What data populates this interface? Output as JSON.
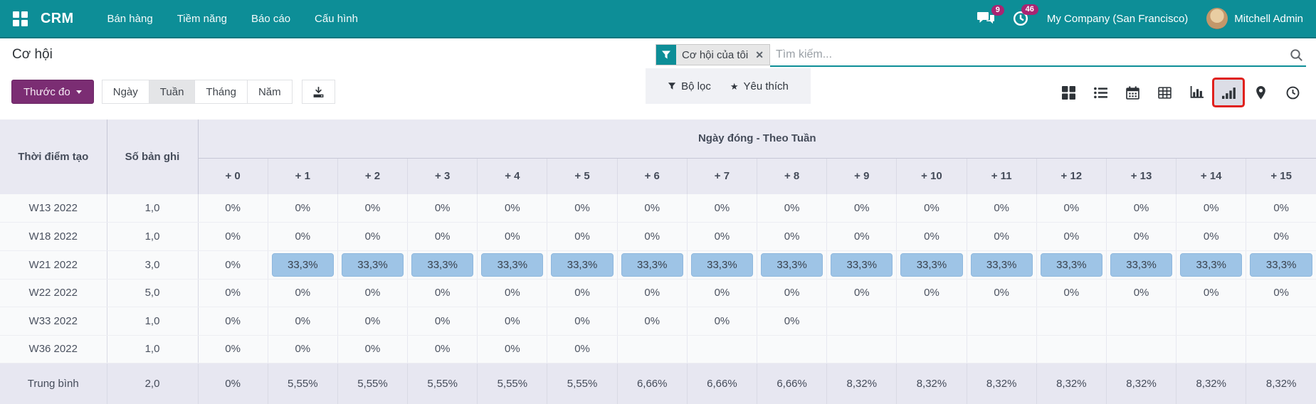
{
  "navbar": {
    "brand": "CRM",
    "menus": [
      "Bán hàng",
      "Tiềm năng",
      "Báo cáo",
      "Cấu hình"
    ],
    "messages_badge": "9",
    "activities_badge": "46",
    "company": "My Company (San Francisco)",
    "user": "Mitchell Admin"
  },
  "header": {
    "title": "Cơ hội",
    "search": {
      "filter_tag": "Cơ hội của tôi",
      "placeholder": "Tìm kiếm..."
    },
    "measure_button": "Thước đo",
    "ranges": [
      "Ngày",
      "Tuần",
      "Tháng",
      "Năm"
    ],
    "active_range": "Tuần",
    "filters_button": "Bộ lọc",
    "favorites_button": "Yêu thích",
    "view_switcher": [
      "kanban",
      "list",
      "calendar",
      "pivot",
      "graph",
      "cohort",
      "map",
      "activity"
    ],
    "active_view": "cohort"
  },
  "annotation": {
    "highlighted_view": "cohort"
  },
  "cohort": {
    "row_header": "Thời điểm tạo",
    "count_header": "Số bản ghi",
    "group_header": "Ngày đóng - Theo Tuần",
    "columns": [
      "+ 0",
      "+ 1",
      "+ 2",
      "+ 3",
      "+ 4",
      "+ 5",
      "+ 6",
      "+ 7",
      "+ 8",
      "+ 9",
      "+ 10",
      "+ 11",
      "+ 12",
      "+ 13",
      "+ 14",
      "+ 15"
    ],
    "highlight_value": "33,3%",
    "rows": [
      {
        "label": "W13 2022",
        "count": "1,0",
        "values": [
          "0%",
          "0%",
          "0%",
          "0%",
          "0%",
          "0%",
          "0%",
          "0%",
          "0%",
          "0%",
          "0%",
          "0%",
          "0%",
          "0%",
          "0%",
          "0%"
        ]
      },
      {
        "label": "W18 2022",
        "count": "1,0",
        "values": [
          "0%",
          "0%",
          "0%",
          "0%",
          "0%",
          "0%",
          "0%",
          "0%",
          "0%",
          "0%",
          "0%",
          "0%",
          "0%",
          "0%",
          "0%",
          "0%"
        ]
      },
      {
        "label": "W21 2022",
        "count": "3,0",
        "values": [
          "0%",
          "33,3%",
          "33,3%",
          "33,3%",
          "33,3%",
          "33,3%",
          "33,3%",
          "33,3%",
          "33,3%",
          "33,3%",
          "33,3%",
          "33,3%",
          "33,3%",
          "33,3%",
          "33,3%",
          "33,3%"
        ]
      },
      {
        "label": "W22 2022",
        "count": "5,0",
        "values": [
          "0%",
          "0%",
          "0%",
          "0%",
          "0%",
          "0%",
          "0%",
          "0%",
          "0%",
          "0%",
          "0%",
          "0%",
          "0%",
          "0%",
          "0%",
          "0%"
        ]
      },
      {
        "label": "W33 2022",
        "count": "1,0",
        "values": [
          "0%",
          "0%",
          "0%",
          "0%",
          "0%",
          "0%",
          "0%",
          "0%",
          "0%",
          "",
          "",
          "",
          "",
          "",
          "",
          ""
        ]
      },
      {
        "label": "W36 2022",
        "count": "1,0",
        "values": [
          "0%",
          "0%",
          "0%",
          "0%",
          "0%",
          "0%",
          "",
          "",
          "",
          "",
          "",
          "",
          "",
          "",
          "",
          ""
        ]
      }
    ],
    "footer": {
      "label": "Trung bình",
      "count": "2,0",
      "values": [
        "0%",
        "5,55%",
        "5,55%",
        "5,55%",
        "5,55%",
        "5,55%",
        "6,66%",
        "6,66%",
        "6,66%",
        "8,32%",
        "8,32%",
        "8,32%",
        "8,32%",
        "8,32%",
        "8,32%",
        "8,32%"
      ]
    }
  },
  "colors": {
    "navbar_bg": "#0d8e97",
    "primary_button_bg": "#7b2d73",
    "badge_bg": "#a82472",
    "cell_highlight": "#9ec4e6",
    "annotation_red": "#e0211d",
    "table_header_bg": "#e9e9f2"
  }
}
